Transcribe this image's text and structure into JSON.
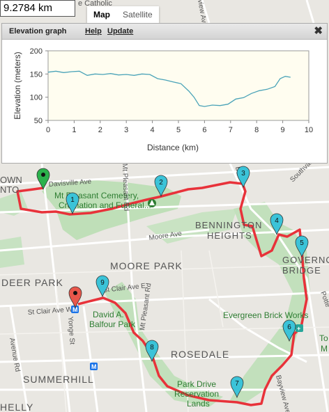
{
  "distance_box": {
    "value": "9.2784 km"
  },
  "map_type": {
    "map": "Map",
    "satellite": "Satellite"
  },
  "panel": {
    "title": "Elevation graph",
    "help": "Help",
    "update": "Update"
  },
  "chart_data": {
    "type": "line",
    "xlabel": "Distance (km)",
    "ylabel": "Elevation (meters)",
    "xlim": [
      0,
      10
    ],
    "ylim": [
      50,
      200
    ],
    "xticks": [
      "0",
      "1",
      "2",
      "3",
      "4",
      "5",
      "6",
      "7",
      "8",
      "9",
      "10"
    ],
    "yticks": [
      "50",
      "100",
      "150",
      "200"
    ],
    "grid": false,
    "line_color": "#4aa3b8",
    "background": "#fffdf0",
    "series": [
      {
        "x": [
          0,
          0.3,
          0.6,
          0.9,
          1.2,
          1.5,
          1.8,
          2.1,
          2.4,
          2.7,
          3.0,
          3.3,
          3.6,
          3.9,
          4.2,
          4.5,
          4.8,
          5.1,
          5.4,
          5.6,
          5.8,
          6.0,
          6.3,
          6.6,
          6.9,
          7.2,
          7.5,
          7.8,
          8.1,
          8.4,
          8.7,
          8.9,
          9.1,
          9.3
        ],
        "y": [
          154,
          156,
          153,
          155,
          156,
          147,
          150,
          149,
          151,
          148,
          149,
          147,
          150,
          149,
          140,
          137,
          133,
          129,
          113,
          100,
          82,
          80,
          83,
          82,
          85,
          96,
          99,
          108,
          114,
          117,
          123,
          140,
          145,
          143
        ]
      }
    ]
  },
  "map": {
    "places": {
      "davisville": "Davisville Ave",
      "town": "OWN",
      "town2": "NTO",
      "cemetery1": "Mt Pleasant Cemetery,",
      "cemetery2": "Cremation and Funeral...",
      "mt_pleasant_rd": "Mt Pleasant Rd",
      "moore_ave": "Moore Ave",
      "moore_park": "MOORE PARK",
      "bennington1": "BENNINGTON",
      "bennington2": "HEIGHTS",
      "governor1": "GOVERNOR",
      "governor2": "BRIDGE",
      "deer_park": "DEER PARK",
      "st_clair_w": "St Clair Ave W",
      "st_clair_e": "St Clair Ave E",
      "balfour1": "David A.",
      "balfour2": "Balfour Park",
      "mt_pleasant_rd2": "Mt Pleasant Rd",
      "evergreen": "Evergreen Brick Works",
      "rosedale": "ROSEDALE",
      "yonge": "Yonge St",
      "summerhill": "SUMMERHILL",
      "avenue_rd": "Avenue Rd",
      "park_drive1": "Park Drive",
      "park_drive2": "Reservation",
      "park_drive3": "Lands",
      "bayview": "Bayview Ave",
      "southvale": "Southvale",
      "pottery": "Potte",
      "balliol": "Ba",
      "ichelly": "HELLY",
      "to_": "To",
      "m_": "M",
      "catholic": "e Catholic",
      "fview": "view Av"
    },
    "markers": [
      "1",
      "2",
      "3",
      "4",
      "5",
      "6",
      "7",
      "8",
      "9"
    ],
    "colors": {
      "route": "#e8323a",
      "marker_blue": "#3bc3d8",
      "marker_green": "#2bb24c",
      "marker_red": "#e8574b"
    }
  }
}
